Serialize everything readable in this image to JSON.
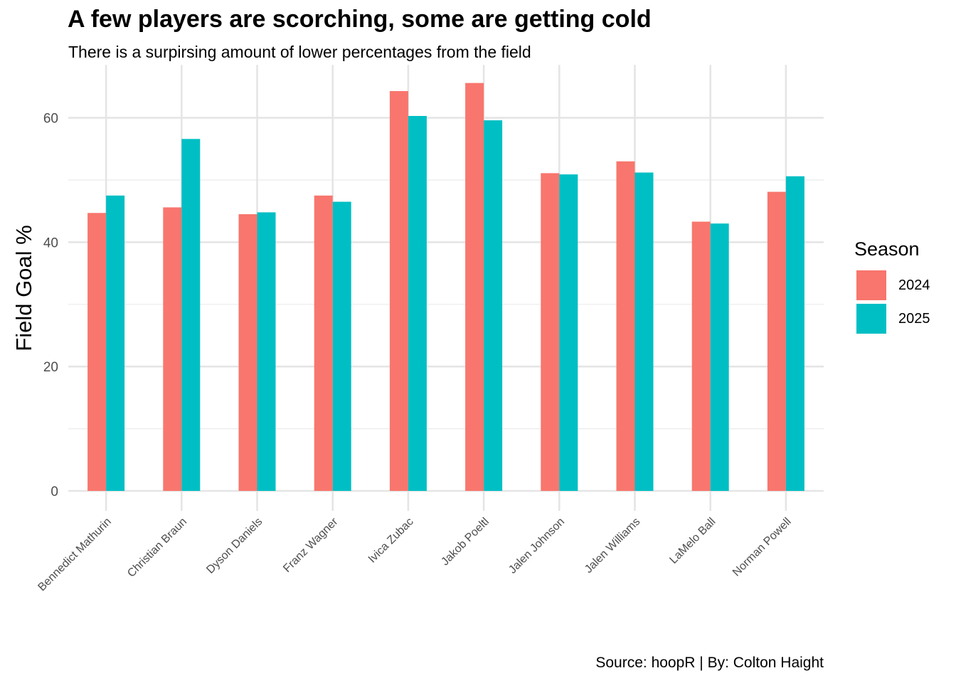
{
  "title": "A few players are scorching, some are getting cold",
  "subtitle": "There is a surpirsing amount of lower percentages from the field",
  "caption": "Source: hoopR | By: Colton Haight",
  "chart_data": {
    "type": "bar",
    "ylabel": "Field Goal %",
    "xlabel": "",
    "ylim": [
      0,
      68.5
    ],
    "yticks": [
      0,
      20,
      40,
      60
    ],
    "grid": true,
    "legend_title": "Season",
    "legend_position": "right",
    "categories": [
      "Bennedict Mathurin",
      "Christian Braun",
      "Dyson Daniels",
      "Franz Wagner",
      "Ivica Zubac",
      "Jakob Poeltl",
      "Jalen Johnson",
      "Jalen Williams",
      "LaMelo Ball",
      "Norman Powell"
    ],
    "series": [
      {
        "name": "2024",
        "color": "#F8766D",
        "values": [
          44.7,
          45.6,
          44.5,
          47.5,
          64.3,
          65.6,
          51.1,
          53.0,
          43.3,
          48.1
        ]
      },
      {
        "name": "2025",
        "color": "#00BFC4",
        "values": [
          47.5,
          56.6,
          44.8,
          46.5,
          60.3,
          59.6,
          50.9,
          51.2,
          43.0,
          50.6
        ]
      }
    ]
  }
}
